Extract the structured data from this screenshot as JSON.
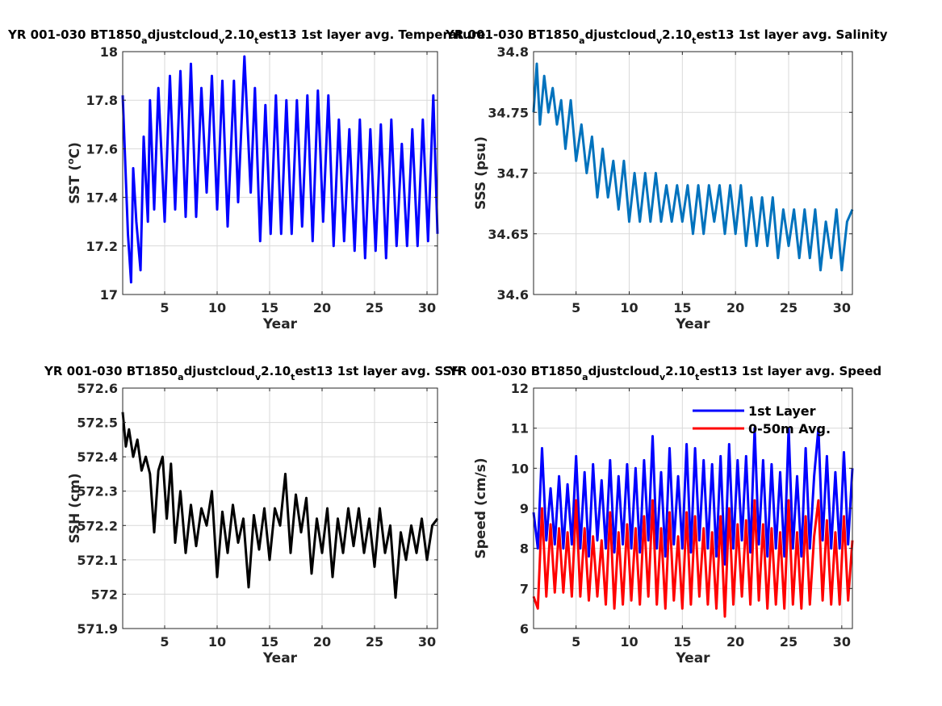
{
  "chart_data": [
    {
      "type": "line",
      "title_parts": [
        "YR 001-030 BT1850",
        "a",
        "djustcloud",
        "v",
        "2.10",
        "t",
        "est13 1st layer avg. Temperature"
      ],
      "xlabel": "Year",
      "ylabel": "SST (",
      "ylabel_sup": "o",
      "ylabel_end": "C)",
      "xlim": [
        1,
        31
      ],
      "ylim": [
        17,
        18
      ],
      "xticks": [
        "5",
        "10",
        "15",
        "20",
        "25",
        "30"
      ],
      "yticks": [
        "17",
        "17.2",
        "17.4",
        "17.6",
        "17.8",
        "18"
      ],
      "grid": true,
      "series": [
        {
          "color": "#0000ff",
          "x": [
            1,
            1.5,
            1.8,
            2.0,
            2.3,
            2.7,
            3.0,
            3.4,
            3.6,
            4.0,
            4.4,
            5.0,
            5.5,
            6.0,
            6.5,
            7.0,
            7.5,
            8.0,
            8.5,
            9.0,
            9.5,
            10.0,
            10.5,
            11.0,
            11.6,
            12.0,
            12.6,
            13.2,
            13.6,
            14.1,
            14.6,
            15.1,
            15.6,
            16.1,
            16.6,
            17.1,
            17.6,
            18.1,
            18.6,
            19.1,
            19.6,
            20.1,
            20.6,
            21.1,
            21.6,
            22.1,
            22.6,
            23.1,
            23.6,
            24.1,
            24.6,
            25.1,
            25.6,
            26.1,
            26.6,
            27.1,
            27.6,
            28.1,
            28.6,
            29.1,
            29.6,
            30.1,
            30.6,
            31
          ],
          "values": [
            17.82,
            17.25,
            17.05,
            17.52,
            17.3,
            17.1,
            17.65,
            17.3,
            17.8,
            17.35,
            17.85,
            17.3,
            17.9,
            17.35,
            17.92,
            17.32,
            17.95,
            17.32,
            17.85,
            17.42,
            17.9,
            17.35,
            17.88,
            17.28,
            17.88,
            17.38,
            17.98,
            17.42,
            17.85,
            17.22,
            17.78,
            17.25,
            17.82,
            17.25,
            17.8,
            17.25,
            17.8,
            17.28,
            17.82,
            17.22,
            17.84,
            17.3,
            17.82,
            17.2,
            17.72,
            17.22,
            17.68,
            17.18,
            17.72,
            17.15,
            17.68,
            17.18,
            17.7,
            17.15,
            17.72,
            17.2,
            17.62,
            17.2,
            17.68,
            17.2,
            17.72,
            17.22,
            17.82,
            17.25
          ]
        }
      ]
    },
    {
      "type": "line",
      "title_parts": [
        "YR 001-030 BT1850",
        "a",
        "djustcloud",
        "v",
        "2.10",
        "t",
        "est13 1st layer avg. Salinity"
      ],
      "xlabel": "Year",
      "ylabel": "SSS (psu)",
      "xlim": [
        1,
        31
      ],
      "ylim": [
        34.6,
        34.8
      ],
      "xticks": [
        "5",
        "10",
        "15",
        "20",
        "25",
        "30"
      ],
      "yticks": [
        "34.6",
        "34.65",
        "34.7",
        "34.75",
        "34.8"
      ],
      "grid": true,
      "series": [
        {
          "color": "#0072bd",
          "x": [
            1,
            1.3,
            1.6,
            2.0,
            2.4,
            2.8,
            3.2,
            3.6,
            4.0,
            4.5,
            5.0,
            5.5,
            6.0,
            6.5,
            7.0,
            7.5,
            8.0,
            8.5,
            9.0,
            9.5,
            10.0,
            10.5,
            11.0,
            11.5,
            12.0,
            12.5,
            13.0,
            13.5,
            14.0,
            14.5,
            15.0,
            15.5,
            16.0,
            16.5,
            17.0,
            17.5,
            18.0,
            18.5,
            19.0,
            19.5,
            20.0,
            20.5,
            21.0,
            21.5,
            22.0,
            22.5,
            23.0,
            23.5,
            24.0,
            24.5,
            25.0,
            25.5,
            26.0,
            26.5,
            27.0,
            27.5,
            28.0,
            28.5,
            29.0,
            29.5,
            30.0,
            30.5,
            31
          ],
          "values": [
            34.75,
            34.79,
            34.74,
            34.78,
            34.75,
            34.77,
            34.74,
            34.76,
            34.72,
            34.76,
            34.71,
            34.74,
            34.7,
            34.73,
            34.68,
            34.72,
            34.68,
            34.71,
            34.67,
            34.71,
            34.66,
            34.7,
            34.66,
            34.7,
            34.66,
            34.7,
            34.66,
            34.69,
            34.66,
            34.69,
            34.66,
            34.69,
            34.65,
            34.69,
            34.65,
            34.69,
            34.66,
            34.69,
            34.65,
            34.69,
            34.65,
            34.69,
            34.64,
            34.68,
            34.64,
            34.68,
            34.64,
            34.68,
            34.63,
            34.67,
            34.64,
            34.67,
            34.63,
            34.67,
            34.63,
            34.67,
            34.62,
            34.66,
            34.63,
            34.67,
            34.62,
            34.66,
            34.67
          ]
        }
      ]
    },
    {
      "type": "line",
      "title_parts": [
        "YR 001-030 BT1850",
        "a",
        "djustcloud",
        "v",
        "2.10",
        "t",
        "est13 1st layer avg. SSH"
      ],
      "xlabel": "Year",
      "ylabel": "SSH (cm)",
      "xlim": [
        1,
        31
      ],
      "ylim": [
        571.9,
        572.6
      ],
      "xticks": [
        "5",
        "10",
        "15",
        "20",
        "25",
        "30"
      ],
      "yticks": [
        "571.9",
        "572",
        "572.1",
        "572.2",
        "572.3",
        "572.4",
        "572.5",
        "572.6"
      ],
      "grid": true,
      "series": [
        {
          "color": "#000000",
          "x": [
            1,
            1.3,
            1.6,
            2.0,
            2.4,
            2.8,
            3.2,
            3.6,
            4.0,
            4.4,
            4.8,
            5.2,
            5.6,
            6.0,
            6.5,
            7.0,
            7.5,
            8.0,
            8.5,
            9.0,
            9.5,
            10.0,
            10.5,
            11.0,
            11.5,
            12.0,
            12.5,
            13.0,
            13.5,
            14.0,
            14.5,
            15.0,
            15.5,
            16.0,
            16.5,
            17.0,
            17.5,
            18.0,
            18.5,
            19.0,
            19.5,
            20.0,
            20.5,
            21.0,
            21.5,
            22.0,
            22.5,
            23.0,
            23.5,
            24.0,
            24.5,
            25.0,
            25.5,
            26.0,
            26.5,
            27.0,
            27.5,
            28.0,
            28.5,
            29.0,
            29.5,
            30.0,
            30.5,
            31
          ],
          "values": [
            572.53,
            572.43,
            572.48,
            572.4,
            572.45,
            572.36,
            572.4,
            572.35,
            572.18,
            572.36,
            572.4,
            572.22,
            572.38,
            572.15,
            572.3,
            572.12,
            572.26,
            572.14,
            572.25,
            572.2,
            572.3,
            572.05,
            572.24,
            572.12,
            572.26,
            572.15,
            572.22,
            572.02,
            572.23,
            572.13,
            572.25,
            572.1,
            572.25,
            572.2,
            572.35,
            572.12,
            572.29,
            572.18,
            572.28,
            572.06,
            572.22,
            572.12,
            572.25,
            572.05,
            572.22,
            572.12,
            572.25,
            572.14,
            572.25,
            572.12,
            572.22,
            572.08,
            572.25,
            572.12,
            572.2,
            571.99,
            572.18,
            572.1,
            572.2,
            572.12,
            572.22,
            572.1,
            572.2,
            572.22
          ]
        }
      ]
    },
    {
      "type": "line",
      "title_parts": [
        "YR 001-030 BT1850",
        "a",
        "djustcloud",
        "v",
        "2.10",
        "t",
        "est13 1st layer avg. Speed"
      ],
      "xlabel": "Year",
      "ylabel": "Speed (cm/s)",
      "xlim": [
        1,
        31
      ],
      "ylim": [
        6,
        12
      ],
      "xticks": [
        "5",
        "10",
        "15",
        "20",
        "25",
        "30"
      ],
      "yticks": [
        "6",
        "7",
        "8",
        "9",
        "10",
        "11",
        "12"
      ],
      "grid": true,
      "legend": "top-right",
      "series": [
        {
          "name": "1st Layer",
          "color": "#0000ff",
          "x": [
            1,
            1.4,
            1.8,
            2.2,
            2.6,
            3.0,
            3.4,
            3.8,
            4.2,
            4.6,
            5.0,
            5.4,
            5.8,
            6.2,
            6.6,
            7.0,
            7.4,
            7.8,
            8.2,
            8.6,
            9.0,
            9.4,
            9.8,
            10.2,
            10.6,
            11.0,
            11.4,
            11.8,
            12.2,
            12.6,
            13.0,
            13.4,
            13.8,
            14.2,
            14.6,
            15.0,
            15.4,
            15.8,
            16.2,
            16.6,
            17.0,
            17.4,
            17.8,
            18.2,
            18.6,
            19.0,
            19.4,
            19.8,
            20.2,
            20.6,
            21.0,
            21.4,
            21.8,
            22.2,
            22.6,
            23.0,
            23.4,
            23.8,
            24.2,
            24.6,
            25.0,
            25.4,
            25.8,
            26.2,
            26.6,
            27.0,
            27.4,
            27.8,
            28.2,
            28.6,
            29.0,
            29.4,
            29.8,
            30.2,
            30.6,
            31
          ],
          "values": [
            8.9,
            8.0,
            10.5,
            8.2,
            9.5,
            8.1,
            9.8,
            8.0,
            9.6,
            8.1,
            10.3,
            8.0,
            9.9,
            7.8,
            10.1,
            8.2,
            9.7,
            8.0,
            10.2,
            7.9,
            9.8,
            8.1,
            10.1,
            8.0,
            10.0,
            7.9,
            10.2,
            8.2,
            10.8,
            8.0,
            9.9,
            7.8,
            10.5,
            8.1,
            9.8,
            8.0,
            10.6,
            7.9,
            10.5,
            8.2,
            10.2,
            8.0,
            10.1,
            7.8,
            10.3,
            7.6,
            10.6,
            8.0,
            10.2,
            8.2,
            10.3,
            7.9,
            11.0,
            8.1,
            10.2,
            7.8,
            10.1,
            8.0,
            9.9,
            7.8,
            11.0,
            8.0,
            9.8,
            7.8,
            10.5,
            8.0,
            9.8,
            11.0,
            8.2,
            10.3,
            8.0,
            9.9,
            8.0,
            10.4,
            8.1,
            10.0
          ]
        },
        {
          "name": "0-50m Avg.",
          "color": "#ff0000",
          "x": [
            1,
            1.4,
            1.8,
            2.2,
            2.6,
            3.0,
            3.4,
            3.8,
            4.2,
            4.6,
            5.0,
            5.4,
            5.8,
            6.2,
            6.6,
            7.0,
            7.4,
            7.8,
            8.2,
            8.6,
            9.0,
            9.4,
            9.8,
            10.2,
            10.6,
            11.0,
            11.4,
            11.8,
            12.2,
            12.6,
            13.0,
            13.4,
            13.8,
            14.2,
            14.6,
            15.0,
            15.4,
            15.8,
            16.2,
            16.6,
            17.0,
            17.4,
            17.8,
            18.2,
            18.6,
            19.0,
            19.4,
            19.8,
            20.2,
            20.6,
            21.0,
            21.4,
            21.8,
            22.2,
            22.6,
            23.0,
            23.4,
            23.8,
            24.2,
            24.6,
            25.0,
            25.4,
            25.8,
            26.2,
            26.6,
            27.0,
            27.4,
            27.8,
            28.2,
            28.6,
            29.0,
            29.4,
            29.8,
            30.2,
            30.6,
            31
          ],
          "values": [
            6.8,
            6.5,
            9.0,
            6.8,
            8.6,
            6.9,
            8.5,
            6.9,
            8.4,
            6.8,
            9.2,
            6.8,
            8.5,
            6.7,
            8.3,
            6.8,
            8.2,
            6.6,
            8.9,
            6.5,
            8.4,
            6.6,
            8.6,
            6.7,
            8.5,
            6.6,
            8.8,
            6.8,
            9.2,
            6.6,
            8.5,
            6.5,
            8.9,
            6.7,
            8.3,
            6.5,
            8.9,
            6.6,
            8.8,
            6.8,
            8.5,
            6.6,
            8.4,
            6.5,
            8.8,
            6.3,
            9.0,
            6.6,
            8.6,
            6.8,
            8.7,
            6.6,
            9.2,
            6.7,
            8.6,
            6.5,
            8.5,
            6.6,
            8.4,
            6.5,
            9.2,
            6.6,
            8.4,
            6.5,
            8.8,
            6.6,
            8.3,
            9.2,
            6.7,
            8.7,
            6.6,
            8.4,
            6.6,
            8.8,
            6.7,
            8.2
          ]
        }
      ]
    }
  ]
}
